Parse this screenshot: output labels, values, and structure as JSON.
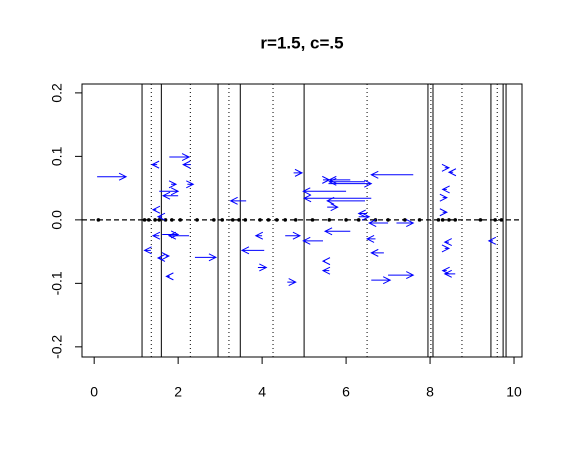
{
  "chart_data": {
    "type": "arrows",
    "title": "r=1.5, c=.5",
    "xlim": [
      -0.29,
      10.19
    ],
    "ylim": [
      -0.216,
      0.214
    ],
    "xticks": [
      0,
      2,
      4,
      6,
      8,
      10
    ],
    "yticks": [
      -0.2,
      -0.1,
      {
        "value": 0,
        "label": "0.0"
      },
      0.1,
      0.2
    ],
    "hline": 0,
    "solid_vlines": [
      1.14,
      1.6,
      2.95,
      3.48,
      5.0,
      7.95,
      8.07,
      9.45,
      9.74,
      9.81
    ],
    "dotted_vlines": [
      1.36,
      2.29,
      3.21,
      4.26,
      6.5,
      8.02,
      8.76,
      9.6
    ],
    "points_x": [
      0.1,
      1.2,
      1.3,
      1.45,
      1.55,
      1.7,
      1.85,
      2.05,
      2.45,
      2.85,
      3.05,
      3.3,
      3.45,
      3.6,
      3.95,
      4.15,
      4.35,
      4.55,
      4.8,
      5.2,
      5.6,
      6.0,
      6.3,
      6.7,
      7.0,
      7.4,
      7.75,
      8.2,
      8.3,
      8.45,
      8.6,
      9.2,
      9.55,
      9.7
    ],
    "arrow_color": "#0000ff",
    "arrows": {
      "x0": [
        0.07,
        1.79,
        1.5,
        2.3,
        1.83,
        2.22,
        1.55,
        2.0,
        1.48,
        1.62,
        1.55,
        1.62,
        2.26,
        1.35,
        1.6,
        1.7,
        2.4,
        1.8,
        3.62,
        4.0,
        4.55,
        4.05,
        3.9,
        4.6,
        4.75,
        6.0,
        5.45,
        6.1,
        6.45,
        5.58,
        6.6,
        6.45,
        5.55,
        6.5,
        6.1,
        5.45,
        7.6,
        5.5,
        5.6,
        6.9,
        6.6,
        7.0,
        7.0,
        7.2,
        6.7,
        6.3,
        8.35,
        8.55,
        8.4,
        8.3,
        8.3,
        8.45,
        8.4,
        8.6,
        8.35,
        9.5
      ],
      "x1": [
        0.76,
        2.26,
        1.38,
        2.12,
        1.95,
        2.36,
        2.0,
        1.64,
        1.4,
        1.52,
        1.4,
        2.0,
        1.78,
        1.2,
        1.52,
        1.78,
        2.9,
        1.72,
        3.25,
        3.85,
        4.9,
        3.52,
        4.1,
        4.8,
        4.95,
        4.98,
        5.6,
        5.6,
        5.6,
        6.6,
        5.0,
        5.55,
        5.8,
        6.3,
        5.5,
        4.98,
        6.6,
        5.45,
        5.45,
        6.6,
        7.05,
        7.6,
        6.55,
        7.6,
        6.5,
        6.55,
        8.45,
        8.45,
        8.3,
        8.4,
        8.4,
        8.35,
        8.3,
        8.35,
        8.45,
        9.4
      ],
      "y": [
        0.068,
        0.099,
        0.087,
        0.087,
        0.056,
        0.056,
        0.045,
        0.038,
        0.016,
        0.005,
        -0.025,
        -0.023,
        -0.025,
        -0.048,
        -0.06,
        -0.057,
        -0.059,
        -0.089,
        0.03,
        -0.025,
        -0.025,
        -0.048,
        -0.075,
        -0.098,
        0.074,
        0.045,
        0.063,
        0.063,
        0.06,
        0.057,
        0.034,
        0.03,
        0.02,
        0.01,
        -0.018,
        -0.033,
        0.071,
        -0.065,
        -0.08,
        -0.052,
        -0.095,
        -0.087,
        -0.005,
        -0.005,
        -0.03,
        0.005,
        0.082,
        0.075,
        0.048,
        0.035,
        0.012,
        -0.035,
        -0.08,
        -0.085,
        -0.045,
        -0.033
      ]
    }
  }
}
